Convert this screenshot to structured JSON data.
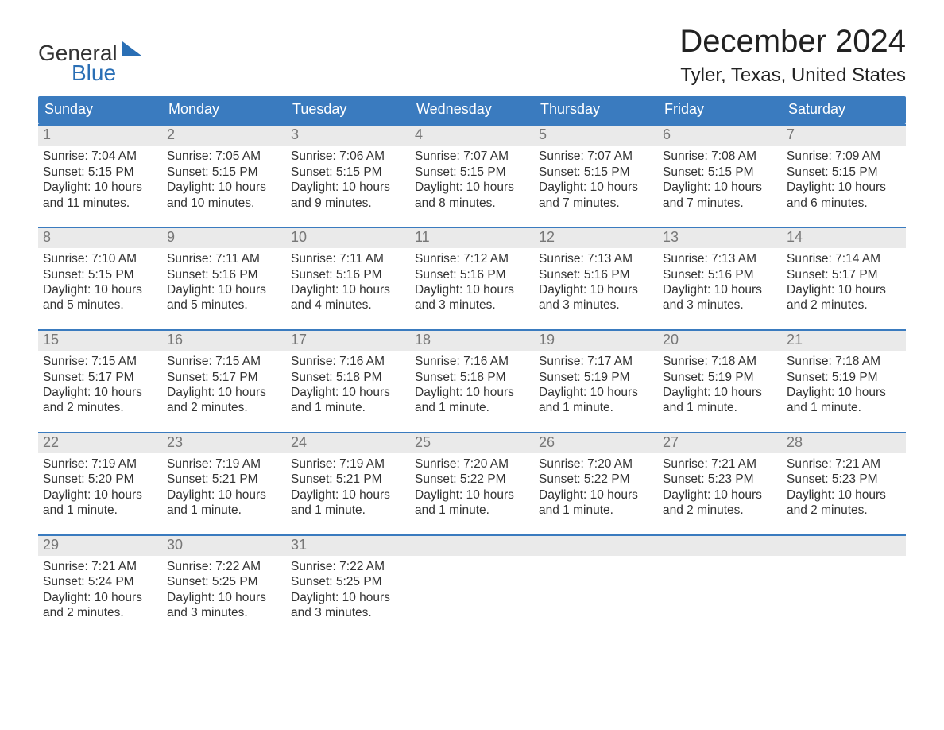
{
  "logo": {
    "word1": "General",
    "word2": "Blue",
    "word1_color": "#333333",
    "word2_color": "#2a6fb5",
    "sail_color": "#2a6fb5",
    "fontsize": 28
  },
  "title": {
    "month": "December 2024",
    "month_fontsize": 40,
    "month_color": "#222222",
    "location": "Tyler, Texas, United States",
    "location_fontsize": 24,
    "location_color": "#222222"
  },
  "styling": {
    "header_bg": "#3a7bbf",
    "header_text_color": "#ffffff",
    "header_fontsize": 18,
    "week_border_color": "#3a7bbf",
    "daynum_bg": "#eaeaea",
    "daynum_color": "#777777",
    "daynum_fontsize": 18,
    "body_fontsize": 15.5,
    "body_color": "#333333",
    "page_bg": "#ffffff"
  },
  "day_headers": [
    "Sunday",
    "Monday",
    "Tuesday",
    "Wednesday",
    "Thursday",
    "Friday",
    "Saturday"
  ],
  "weeks": [
    [
      {
        "day": "1",
        "sunrise": "Sunrise: 7:04 AM",
        "sunset": "Sunset: 5:15 PM",
        "daylight1": "Daylight: 10 hours",
        "daylight2": "and 11 minutes."
      },
      {
        "day": "2",
        "sunrise": "Sunrise: 7:05 AM",
        "sunset": "Sunset: 5:15 PM",
        "daylight1": "Daylight: 10 hours",
        "daylight2": "and 10 minutes."
      },
      {
        "day": "3",
        "sunrise": "Sunrise: 7:06 AM",
        "sunset": "Sunset: 5:15 PM",
        "daylight1": "Daylight: 10 hours",
        "daylight2": "and 9 minutes."
      },
      {
        "day": "4",
        "sunrise": "Sunrise: 7:07 AM",
        "sunset": "Sunset: 5:15 PM",
        "daylight1": "Daylight: 10 hours",
        "daylight2": "and 8 minutes."
      },
      {
        "day": "5",
        "sunrise": "Sunrise: 7:07 AM",
        "sunset": "Sunset: 5:15 PM",
        "daylight1": "Daylight: 10 hours",
        "daylight2": "and 7 minutes."
      },
      {
        "day": "6",
        "sunrise": "Sunrise: 7:08 AM",
        "sunset": "Sunset: 5:15 PM",
        "daylight1": "Daylight: 10 hours",
        "daylight2": "and 7 minutes."
      },
      {
        "day": "7",
        "sunrise": "Sunrise: 7:09 AM",
        "sunset": "Sunset: 5:15 PM",
        "daylight1": "Daylight: 10 hours",
        "daylight2": "and 6 minutes."
      }
    ],
    [
      {
        "day": "8",
        "sunrise": "Sunrise: 7:10 AM",
        "sunset": "Sunset: 5:15 PM",
        "daylight1": "Daylight: 10 hours",
        "daylight2": "and 5 minutes."
      },
      {
        "day": "9",
        "sunrise": "Sunrise: 7:11 AM",
        "sunset": "Sunset: 5:16 PM",
        "daylight1": "Daylight: 10 hours",
        "daylight2": "and 5 minutes."
      },
      {
        "day": "10",
        "sunrise": "Sunrise: 7:11 AM",
        "sunset": "Sunset: 5:16 PM",
        "daylight1": "Daylight: 10 hours",
        "daylight2": "and 4 minutes."
      },
      {
        "day": "11",
        "sunrise": "Sunrise: 7:12 AM",
        "sunset": "Sunset: 5:16 PM",
        "daylight1": "Daylight: 10 hours",
        "daylight2": "and 3 minutes."
      },
      {
        "day": "12",
        "sunrise": "Sunrise: 7:13 AM",
        "sunset": "Sunset: 5:16 PM",
        "daylight1": "Daylight: 10 hours",
        "daylight2": "and 3 minutes."
      },
      {
        "day": "13",
        "sunrise": "Sunrise: 7:13 AM",
        "sunset": "Sunset: 5:16 PM",
        "daylight1": "Daylight: 10 hours",
        "daylight2": "and 3 minutes."
      },
      {
        "day": "14",
        "sunrise": "Sunrise: 7:14 AM",
        "sunset": "Sunset: 5:17 PM",
        "daylight1": "Daylight: 10 hours",
        "daylight2": "and 2 minutes."
      }
    ],
    [
      {
        "day": "15",
        "sunrise": "Sunrise: 7:15 AM",
        "sunset": "Sunset: 5:17 PM",
        "daylight1": "Daylight: 10 hours",
        "daylight2": "and 2 minutes."
      },
      {
        "day": "16",
        "sunrise": "Sunrise: 7:15 AM",
        "sunset": "Sunset: 5:17 PM",
        "daylight1": "Daylight: 10 hours",
        "daylight2": "and 2 minutes."
      },
      {
        "day": "17",
        "sunrise": "Sunrise: 7:16 AM",
        "sunset": "Sunset: 5:18 PM",
        "daylight1": "Daylight: 10 hours",
        "daylight2": "and 1 minute."
      },
      {
        "day": "18",
        "sunrise": "Sunrise: 7:16 AM",
        "sunset": "Sunset: 5:18 PM",
        "daylight1": "Daylight: 10 hours",
        "daylight2": "and 1 minute."
      },
      {
        "day": "19",
        "sunrise": "Sunrise: 7:17 AM",
        "sunset": "Sunset: 5:19 PM",
        "daylight1": "Daylight: 10 hours",
        "daylight2": "and 1 minute."
      },
      {
        "day": "20",
        "sunrise": "Sunrise: 7:18 AM",
        "sunset": "Sunset: 5:19 PM",
        "daylight1": "Daylight: 10 hours",
        "daylight2": "and 1 minute."
      },
      {
        "day": "21",
        "sunrise": "Sunrise: 7:18 AM",
        "sunset": "Sunset: 5:19 PM",
        "daylight1": "Daylight: 10 hours",
        "daylight2": "and 1 minute."
      }
    ],
    [
      {
        "day": "22",
        "sunrise": "Sunrise: 7:19 AM",
        "sunset": "Sunset: 5:20 PM",
        "daylight1": "Daylight: 10 hours",
        "daylight2": "and 1 minute."
      },
      {
        "day": "23",
        "sunrise": "Sunrise: 7:19 AM",
        "sunset": "Sunset: 5:21 PM",
        "daylight1": "Daylight: 10 hours",
        "daylight2": "and 1 minute."
      },
      {
        "day": "24",
        "sunrise": "Sunrise: 7:19 AM",
        "sunset": "Sunset: 5:21 PM",
        "daylight1": "Daylight: 10 hours",
        "daylight2": "and 1 minute."
      },
      {
        "day": "25",
        "sunrise": "Sunrise: 7:20 AM",
        "sunset": "Sunset: 5:22 PM",
        "daylight1": "Daylight: 10 hours",
        "daylight2": "and 1 minute."
      },
      {
        "day": "26",
        "sunrise": "Sunrise: 7:20 AM",
        "sunset": "Sunset: 5:22 PM",
        "daylight1": "Daylight: 10 hours",
        "daylight2": "and 1 minute."
      },
      {
        "day": "27",
        "sunrise": "Sunrise: 7:21 AM",
        "sunset": "Sunset: 5:23 PM",
        "daylight1": "Daylight: 10 hours",
        "daylight2": "and 2 minutes."
      },
      {
        "day": "28",
        "sunrise": "Sunrise: 7:21 AM",
        "sunset": "Sunset: 5:23 PM",
        "daylight1": "Daylight: 10 hours",
        "daylight2": "and 2 minutes."
      }
    ],
    [
      {
        "day": "29",
        "sunrise": "Sunrise: 7:21 AM",
        "sunset": "Sunset: 5:24 PM",
        "daylight1": "Daylight: 10 hours",
        "daylight2": "and 2 minutes."
      },
      {
        "day": "30",
        "sunrise": "Sunrise: 7:22 AM",
        "sunset": "Sunset: 5:25 PM",
        "daylight1": "Daylight: 10 hours",
        "daylight2": "and 3 minutes."
      },
      {
        "day": "31",
        "sunrise": "Sunrise: 7:22 AM",
        "sunset": "Sunset: 5:25 PM",
        "daylight1": "Daylight: 10 hours",
        "daylight2": "and 3 minutes."
      },
      {
        "empty": true
      },
      {
        "empty": true
      },
      {
        "empty": true
      },
      {
        "empty": true
      }
    ]
  ]
}
